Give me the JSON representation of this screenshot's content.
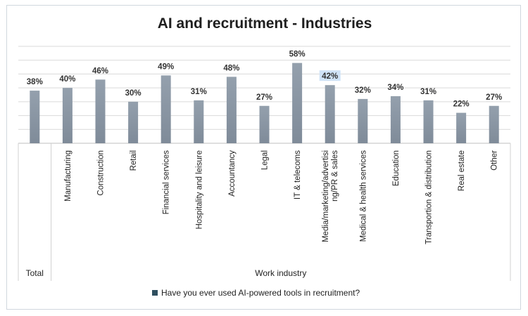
{
  "chart_data": {
    "type": "bar",
    "title": "AI and recruitment - Industries",
    "categories": [
      "Total",
      "Manufacturing",
      "Construction",
      "Retail",
      "Financial services",
      "Hospitality and leisure",
      "Accountancy",
      "Legal",
      "IT & telecoms",
      "Media/marketing/advertising/PR & sales",
      "Medical & health services",
      "Education",
      "Transportion & distribution",
      "Real estate",
      "Other"
    ],
    "category_label_lines": [
      [
        "Total"
      ],
      [
        "Manufacturing"
      ],
      [
        "Construction"
      ],
      [
        "Retail"
      ],
      [
        "Financial services"
      ],
      [
        "Hospitality and leisure"
      ],
      [
        "Accountancy"
      ],
      [
        "Legal"
      ],
      [
        "IT & telecoms"
      ],
      [
        "Media/marketing/advertisi",
        "ng/PR & sales"
      ],
      [
        "Medical & health services"
      ],
      [
        "Education"
      ],
      [
        "Transportion & distribution"
      ],
      [
        "Real estate"
      ],
      [
        "Other"
      ]
    ],
    "series": [
      {
        "name": "Have you ever used AI-powered tools in recruitment?",
        "values": [
          38,
          40,
          46,
          30,
          49,
          31,
          48,
          27,
          58,
          42,
          32,
          34,
          31,
          22,
          27
        ],
        "data_labels": [
          "38%",
          "40%",
          "46%",
          "30%",
          "49%",
          "31%",
          "48%",
          "27%",
          "58%",
          "42%",
          "32%",
          "34%",
          "31%",
          "22%",
          "27%"
        ]
      }
    ],
    "groups": [
      {
        "label": "Total",
        "categories": [
          "Total"
        ]
      },
      {
        "label": "Work industry",
        "categories": [
          "Manufacturing",
          "Construction",
          "Retail",
          "Financial services",
          "Hospitality and leisure",
          "Accountancy",
          "Legal",
          "IT & telecoms",
          "Media/marketing/advertising/PR & sales",
          "Medical & health services",
          "Education",
          "Transportion & distribution",
          "Real estate",
          "Other"
        ]
      }
    ],
    "ylim": [
      0,
      70
    ],
    "gridlines": true,
    "legend_position": "bottom",
    "highlighted_label": "42%",
    "colors": {
      "bar": "#7f8b99",
      "bar_highlight_top": "#94a0ad",
      "grid": "#d9d9d9",
      "legend_marker": "#2f4f5f",
      "label_highlight": "#cfe3f7"
    }
  }
}
